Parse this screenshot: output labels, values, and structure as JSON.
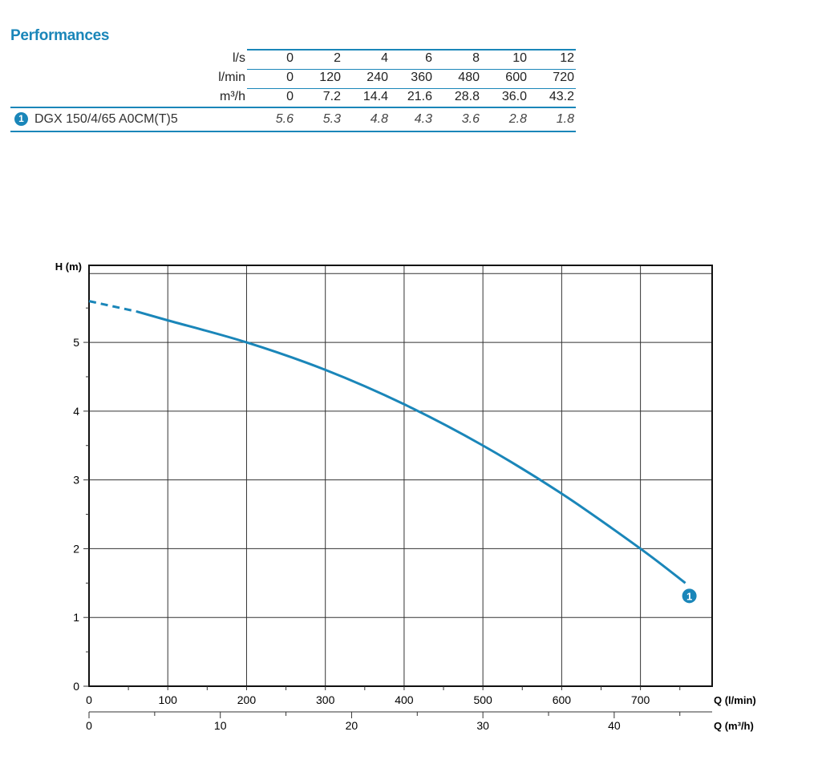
{
  "title": "Performances",
  "table": {
    "rows": [
      {
        "unit": "l/s",
        "values": [
          "0",
          "2",
          "4",
          "6",
          "8",
          "10",
          "12"
        ]
      },
      {
        "unit": "l/min",
        "values": [
          "0",
          "120",
          "240",
          "360",
          "480",
          "600",
          "720"
        ]
      },
      {
        "unit": "m³/h",
        "values": [
          "0",
          "7.2",
          "14.4",
          "21.6",
          "28.8",
          "36.0",
          "43.2"
        ]
      }
    ],
    "model": {
      "badge": "1",
      "name": "DGX 150/4/65 A0CM(T)5",
      "values": [
        "5.6",
        "5.3",
        "4.8",
        "4.3",
        "3.6",
        "2.8",
        "1.8"
      ]
    }
  },
  "chart_data": {
    "type": "line",
    "ylabel": "H (m)",
    "xlabel": "Q (l/min)",
    "x2label": "Q (m³/h)",
    "xlim": [
      0,
      791
    ],
    "ylim": [
      0,
      6.12
    ],
    "xticks": [
      "0",
      "100",
      "200",
      "300",
      "400",
      "500",
      "600",
      "700"
    ],
    "x2ticks": [
      "0",
      "10",
      "20",
      "30",
      "40"
    ],
    "yticks": [
      "0",
      "1",
      "2",
      "3",
      "4",
      "5"
    ],
    "grid": true,
    "color": "#1a86b9",
    "series": [
      {
        "name": "1",
        "x": [
          0,
          60,
          100,
          200,
          300,
          400,
          500,
          600,
          700,
          757
        ],
        "y": [
          5.6,
          5.45,
          5.32,
          5.0,
          4.6,
          4.1,
          3.5,
          2.8,
          2.0,
          1.5
        ],
        "dashed_until": 60
      }
    ]
  }
}
